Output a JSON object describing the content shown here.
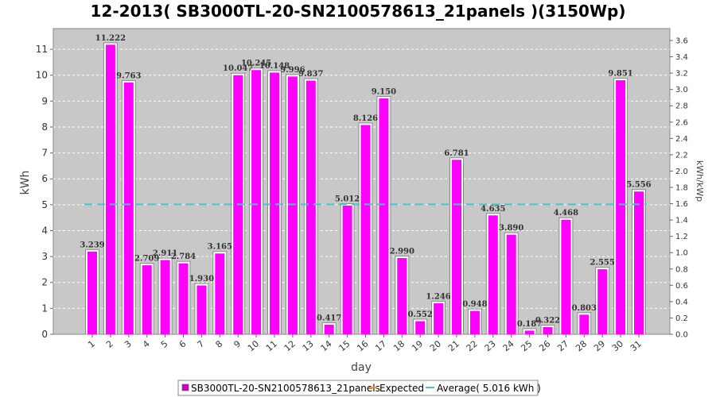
{
  "chart_data": {
    "type": "bar",
    "title": "12-2013( SB3000TL-20-SN2100578613_21panels )(3150Wp)",
    "xlabel": "day",
    "ylabel": "kWh",
    "y2label": "kWh/kWp",
    "ylim": [
      0,
      11.8
    ],
    "y2lim": [
      0,
      3.746
    ],
    "yticks": [
      "0",
      "1",
      "2",
      "3",
      "4",
      "5",
      "6",
      "7",
      "8",
      "9",
      "10",
      "11"
    ],
    "y2ticks": [
      "0.0",
      "0.2",
      "0.4",
      "0.6",
      "0.8",
      "1.0",
      "1.2",
      "1.4",
      "1.6",
      "1.8",
      "2.0",
      "2.2",
      "2.4",
      "2.6",
      "2.8",
      "3.0",
      "3.2",
      "3.4",
      "3.6"
    ],
    "grid": true,
    "legend_position": "bottom",
    "categories": [
      "1",
      "2",
      "3",
      "4",
      "5",
      "6",
      "7",
      "8",
      "9",
      "10",
      "11",
      "12",
      "13",
      "14",
      "15",
      "16",
      "17",
      "18",
      "19",
      "20",
      "21",
      "22",
      "23",
      "24",
      "25",
      "26",
      "27",
      "28",
      "29",
      "30",
      "31"
    ],
    "series": [
      {
        "name": "SB3000TL-20-SN2100578613_21panels",
        "color": "#ff00ff",
        "values": [
          3.239,
          11.222,
          9.763,
          2.709,
          2.911,
          2.784,
          1.93,
          3.165,
          10.047,
          10.245,
          10.148,
          9.996,
          9.837,
          0.417,
          5.012,
          8.126,
          9.15,
          2.99,
          0.552,
          1.246,
          6.781,
          0.948,
          4.635,
          3.89,
          0.187,
          0.322,
          4.468,
          0.803,
          2.555,
          9.851,
          5.556
        ],
        "labels": [
          "3.239",
          "11.222",
          "9.763",
          "2.709",
          "2.911",
          "2.784",
          "1.930",
          "3.165",
          "10.047",
          "10.245",
          "10.148",
          "9.996",
          "9.837",
          "0.417",
          "5.012",
          "8.126",
          "9.150",
          "2.990",
          "0.552",
          "1.246",
          "6.781",
          "0.948",
          "4.635",
          "3.890",
          "0.187",
          "0.322",
          "4.468",
          "0.803",
          "2.555",
          "9.851",
          "5.556"
        ]
      }
    ],
    "legend": [
      {
        "name": "SB3000TL-20-SN2100578613_21panels",
        "color": "#cc00cc"
      },
      {
        "name": "Expected",
        "color": "#ff8c1a"
      },
      {
        "name": "Average( 5.016 kWh )",
        "color": "#40c8c8"
      }
    ],
    "average": {
      "value": 5.016,
      "color": "#40c8c8"
    }
  }
}
